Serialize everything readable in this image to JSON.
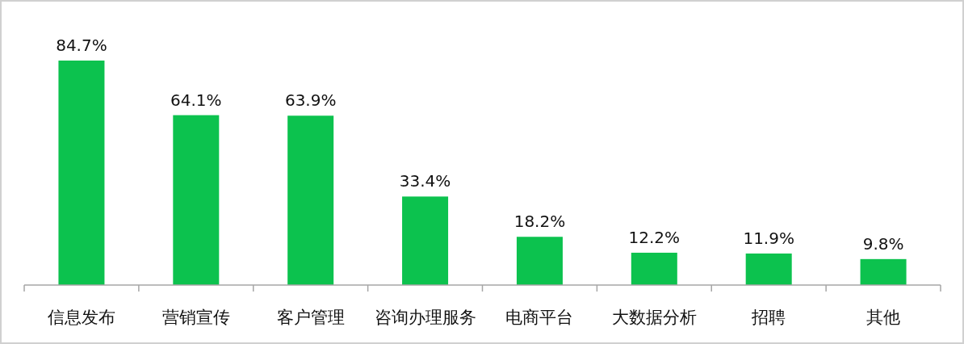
{
  "chart_data": {
    "type": "bar",
    "categories": [
      "信息发布",
      "营销宣传",
      "客户管理",
      "咨询办理服务",
      "电商平台",
      "大数据分析",
      "招聘",
      "其他"
    ],
    "values": [
      84.7,
      64.1,
      63.9,
      33.4,
      18.2,
      12.2,
      11.9,
      9.8
    ],
    "value_labels": [
      "84.7%",
      "64.1%",
      "63.9%",
      "33.4%",
      "18.2%",
      "12.2%",
      "11.9%",
      "9.8%"
    ],
    "color": "#0cc24e"
  }
}
